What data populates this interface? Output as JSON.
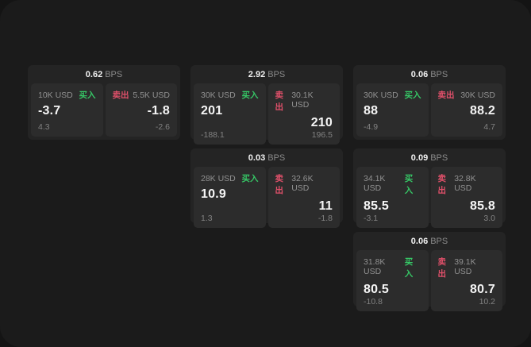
{
  "labels": {
    "bps_unit": "BPS",
    "buy": "买入",
    "sell": "卖出"
  },
  "colors": {
    "page_bg": "#141414",
    "window_bg": "#1b1b1b",
    "card_bg": "#242424",
    "panel_bg": "#2c2c2c",
    "buy_green": "#36c766",
    "sell_red": "#e0506a",
    "text_primary": "#f5f5f5",
    "text_muted": "#8a8a8a"
  },
  "cards": [
    {
      "bps": "0.62",
      "buy": {
        "amount": "10K USD",
        "price": "-3.7",
        "change": "4.3"
      },
      "sell": {
        "amount": "5.5K USD",
        "price": "-1.8",
        "change": "-2.6"
      }
    },
    {
      "bps": "2.92",
      "buy": {
        "amount": "30K USD",
        "price": "201",
        "change": "-188.1"
      },
      "sell": {
        "amount": "30.1K USD",
        "price": "210",
        "change": "196.5"
      }
    },
    {
      "bps": "0.06",
      "buy": {
        "amount": "30K USD",
        "price": "88",
        "change": "-4.9"
      },
      "sell": {
        "amount": "30K USD",
        "price": "88.2",
        "change": "4.7"
      }
    },
    {
      "bps": "0.03",
      "buy": {
        "amount": "28K USD",
        "price": "10.9",
        "change": "1.3"
      },
      "sell": {
        "amount": "32.6K USD",
        "price": "11",
        "change": "-1.8"
      }
    },
    {
      "bps": "0.09",
      "buy": {
        "amount": "34.1K USD",
        "price": "85.5",
        "change": "-3.1"
      },
      "sell": {
        "amount": "32.8K USD",
        "price": "85.8",
        "change": "3.0"
      }
    },
    {
      "bps": "0.06",
      "buy": {
        "amount": "31.8K USD",
        "price": "80.5",
        "change": "-10.8"
      },
      "sell": {
        "amount": "39.1K USD",
        "price": "80.7",
        "change": "10.2"
      }
    }
  ]
}
